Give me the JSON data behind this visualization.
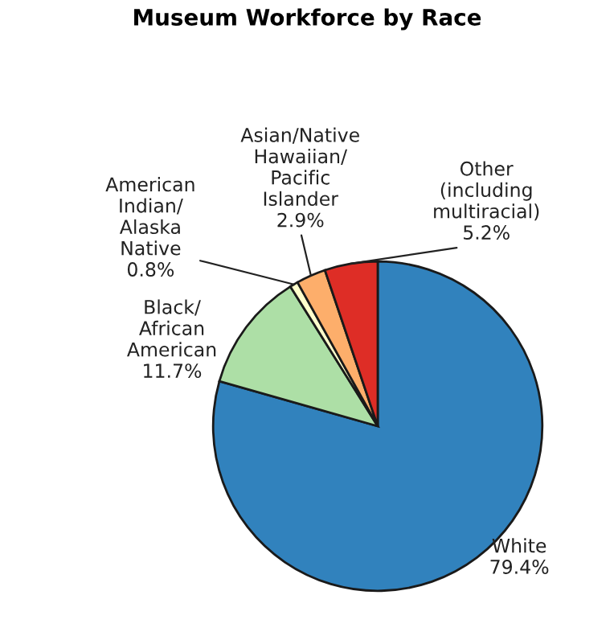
{
  "chart_data": {
    "type": "pie",
    "title": "Museum Workforce by Race",
    "categories": [
      "White",
      "Black/\nAfrican\nAmerican",
      "American\nIndian/\nAlaska\nNative",
      "Asian/Native\nHawaiian/\nPacific\nIslander",
      "Other\n(including\nmultiracial)"
    ],
    "values": [
      79.4,
      11.7,
      0.8,
      2.9,
      5.2
    ],
    "value_labels": [
      "79.4%",
      "11.7%",
      "0.8%",
      "2.9%",
      "5.2%"
    ],
    "colors": [
      "#3182bd",
      "#addfa6",
      "#ffffcc",
      "#fdae6b",
      "#de2d26"
    ],
    "legend": false
  }
}
